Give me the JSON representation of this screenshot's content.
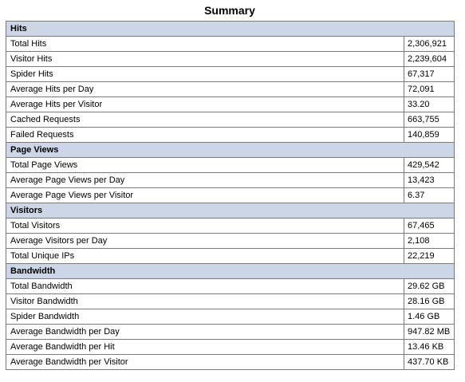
{
  "title": "Summary",
  "sections": [
    {
      "heading": "Hits",
      "rows": [
        {
          "label": "Total Hits",
          "value": "2,306,921"
        },
        {
          "label": "Visitor Hits",
          "value": "2,239,604"
        },
        {
          "label": "Spider Hits",
          "value": "67,317"
        },
        {
          "label": "Average Hits per Day",
          "value": "72,091"
        },
        {
          "label": "Average Hits per Visitor",
          "value": "33.20"
        },
        {
          "label": "Cached Requests",
          "value": "663,755"
        },
        {
          "label": "Failed Requests",
          "value": "140,859"
        }
      ]
    },
    {
      "heading": "Page Views",
      "rows": [
        {
          "label": "Total Page Views",
          "value": "429,542"
        },
        {
          "label": "Average Page Views per Day",
          "value": "13,423"
        },
        {
          "label": "Average Page Views per Visitor",
          "value": "6.37"
        }
      ]
    },
    {
      "heading": "Visitors",
      "rows": [
        {
          "label": "Total Visitors",
          "value": "67,465"
        },
        {
          "label": "Average Visitors per Day",
          "value": "2,108"
        },
        {
          "label": "Total Unique IPs",
          "value": "22,219"
        }
      ]
    },
    {
      "heading": "Bandwidth",
      "rows": [
        {
          "label": "Total Bandwidth",
          "value": "29.62 GB"
        },
        {
          "label": "Visitor Bandwidth",
          "value": "28.16 GB"
        },
        {
          "label": "Spider Bandwidth",
          "value": "1.46 GB"
        },
        {
          "label": "Average Bandwidth per Day",
          "value": "947.82 MB"
        },
        {
          "label": "Average Bandwidth per Hit",
          "value": "13.46 KB"
        },
        {
          "label": "Average Bandwidth per Visitor",
          "value": "437.70 KB"
        }
      ]
    }
  ]
}
